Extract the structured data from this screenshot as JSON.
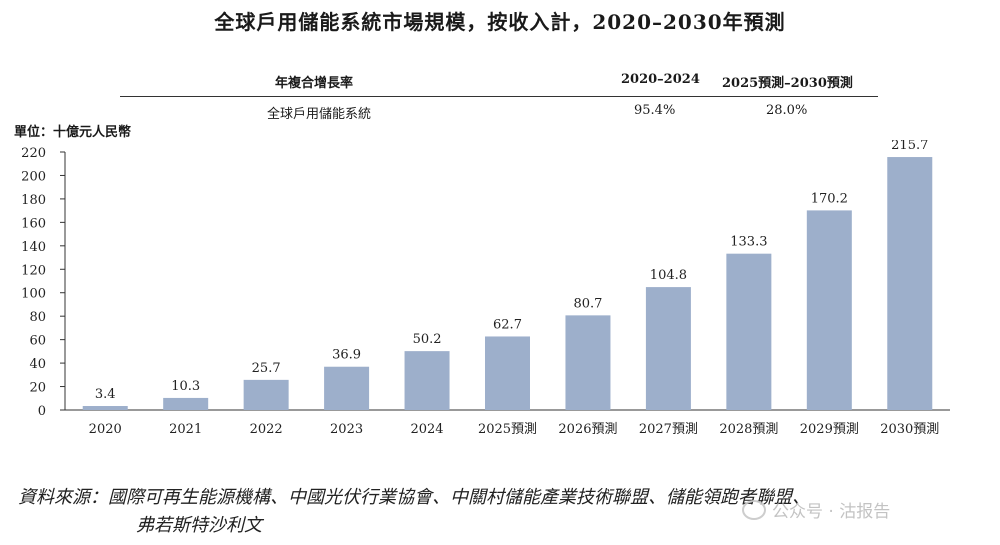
{
  "title": "全球戶用儲能系統市場規模，按收入計，2020–2030年預測",
  "cagr_table": {
    "header": "年複合增長率",
    "periods": [
      "2020–2024",
      "2025預測–2030預測"
    ],
    "row_label": "全球戶用儲能系統",
    "values": [
      "95.4%",
      "28.0%"
    ]
  },
  "unit_label": "單位：十億元人民幣",
  "chart_data": {
    "type": "bar",
    "categories": [
      "2020",
      "2021",
      "2022",
      "2023",
      "2024",
      "2025預測",
      "2026預測",
      "2027預測",
      "2028預測",
      "2029預測",
      "2030預測"
    ],
    "values": [
      3.4,
      10.3,
      25.7,
      36.9,
      50.2,
      62.7,
      80.7,
      104.8,
      133.3,
      170.2,
      215.7
    ],
    "value_labels": [
      "3.4",
      "10.3",
      "25.7",
      "36.9",
      "50.2",
      "62.7",
      "80.7",
      "104.8",
      "133.3",
      "170.2",
      "215.7"
    ],
    "yticks": [
      0,
      20,
      40,
      60,
      80,
      100,
      120,
      140,
      160,
      180,
      200,
      220
    ],
    "ylim": [
      0,
      220
    ],
    "bar_color": "#9dafcb",
    "grid": false,
    "legend": "none"
  },
  "source": {
    "label": "資料來源：",
    "line1": "國際可再生能源機構、中國光伏行業協會、中關村儲能產業技術聯盟、儲能領跑者聯盟、",
    "line2": "弗若斯特沙利文"
  },
  "watermark": "公众号 · 沽报告"
}
